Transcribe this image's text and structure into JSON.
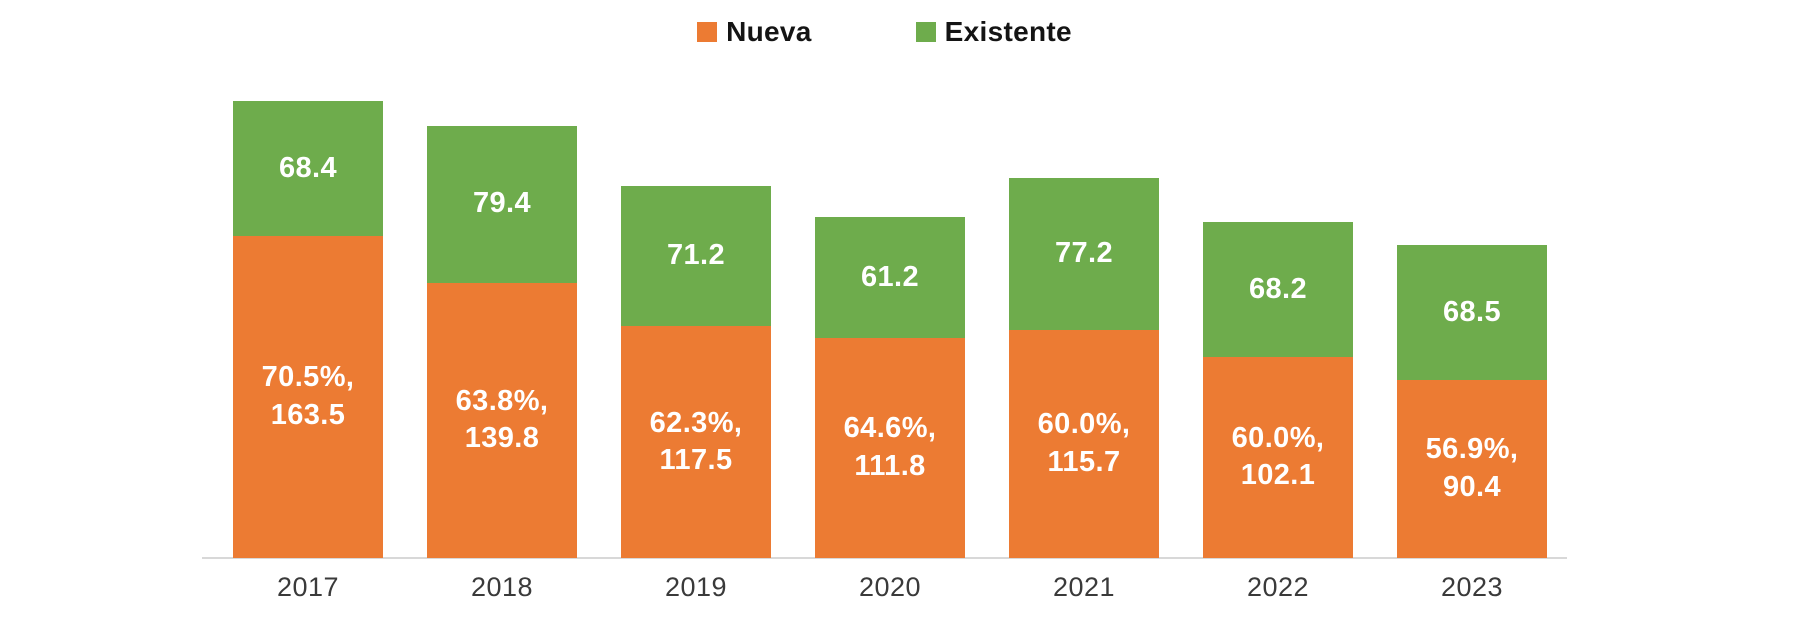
{
  "legend": {
    "items": [
      {
        "label": "Nueva",
        "color": "#EC7B33"
      },
      {
        "label": "Existente",
        "color": "#6EAC4C"
      }
    ]
  },
  "colors": {
    "nueva": "#EC7B33",
    "existente": "#6EAC4C",
    "axis_line": "#D8D8D8",
    "bar_label_text": "#FFFFFF",
    "axis_label_text": "#3A3A3A",
    "legend_text": "#141414",
    "background": "#FFFFFF"
  },
  "bars": [
    {
      "year": "2017",
      "existente_label": "68.4",
      "nueva_label_line1": "70.5%,",
      "nueva_label_line2": "163.5"
    },
    {
      "year": "2018",
      "existente_label": "79.4",
      "nueva_label_line1": "63.8%,",
      "nueva_label_line2": "139.8"
    },
    {
      "year": "2019",
      "existente_label": "71.2",
      "nueva_label_line1": "62.3%,",
      "nueva_label_line2": "117.5"
    },
    {
      "year": "2020",
      "existente_label": "61.2",
      "nueva_label_line1": "64.6%,",
      "nueva_label_line2": "111.8"
    },
    {
      "year": "2021",
      "existente_label": "77.2",
      "nueva_label_line1": "60.0%,",
      "nueva_label_line2": "115.7"
    },
    {
      "year": "2022",
      "existente_label": "68.2",
      "nueva_label_line1": "60.0%,",
      "nueva_label_line2": "102.1"
    },
    {
      "year": "2023",
      "existente_label": "68.5",
      "nueva_label_line1": "56.9%,",
      "nueva_label_line2": "90.4"
    }
  ],
  "chart_data": {
    "type": "bar",
    "stacked": true,
    "categories": [
      "2017",
      "2018",
      "2019",
      "2020",
      "2021",
      "2022",
      "2023"
    ],
    "series": [
      {
        "name": "Nueva",
        "color": "#EC7B33",
        "values": [
          163.5,
          139.8,
          117.5,
          111.8,
          115.7,
          102.1,
          90.4
        ],
        "percent_of_total_labels": [
          "70.5%",
          "63.8%",
          "62.3%",
          "64.6%",
          "60.0%",
          "60.0%",
          "56.9%"
        ]
      },
      {
        "name": "Existente",
        "color": "#6EAC4C",
        "values": [
          68.4,
          79.4,
          71.2,
          61.2,
          77.2,
          68.2,
          68.5
        ]
      }
    ],
    "title": "",
    "xlabel": "",
    "ylabel": "",
    "legend_position": "top-center",
    "grid": false,
    "y_axis_visible": false,
    "data_labels": "inside-center"
  }
}
